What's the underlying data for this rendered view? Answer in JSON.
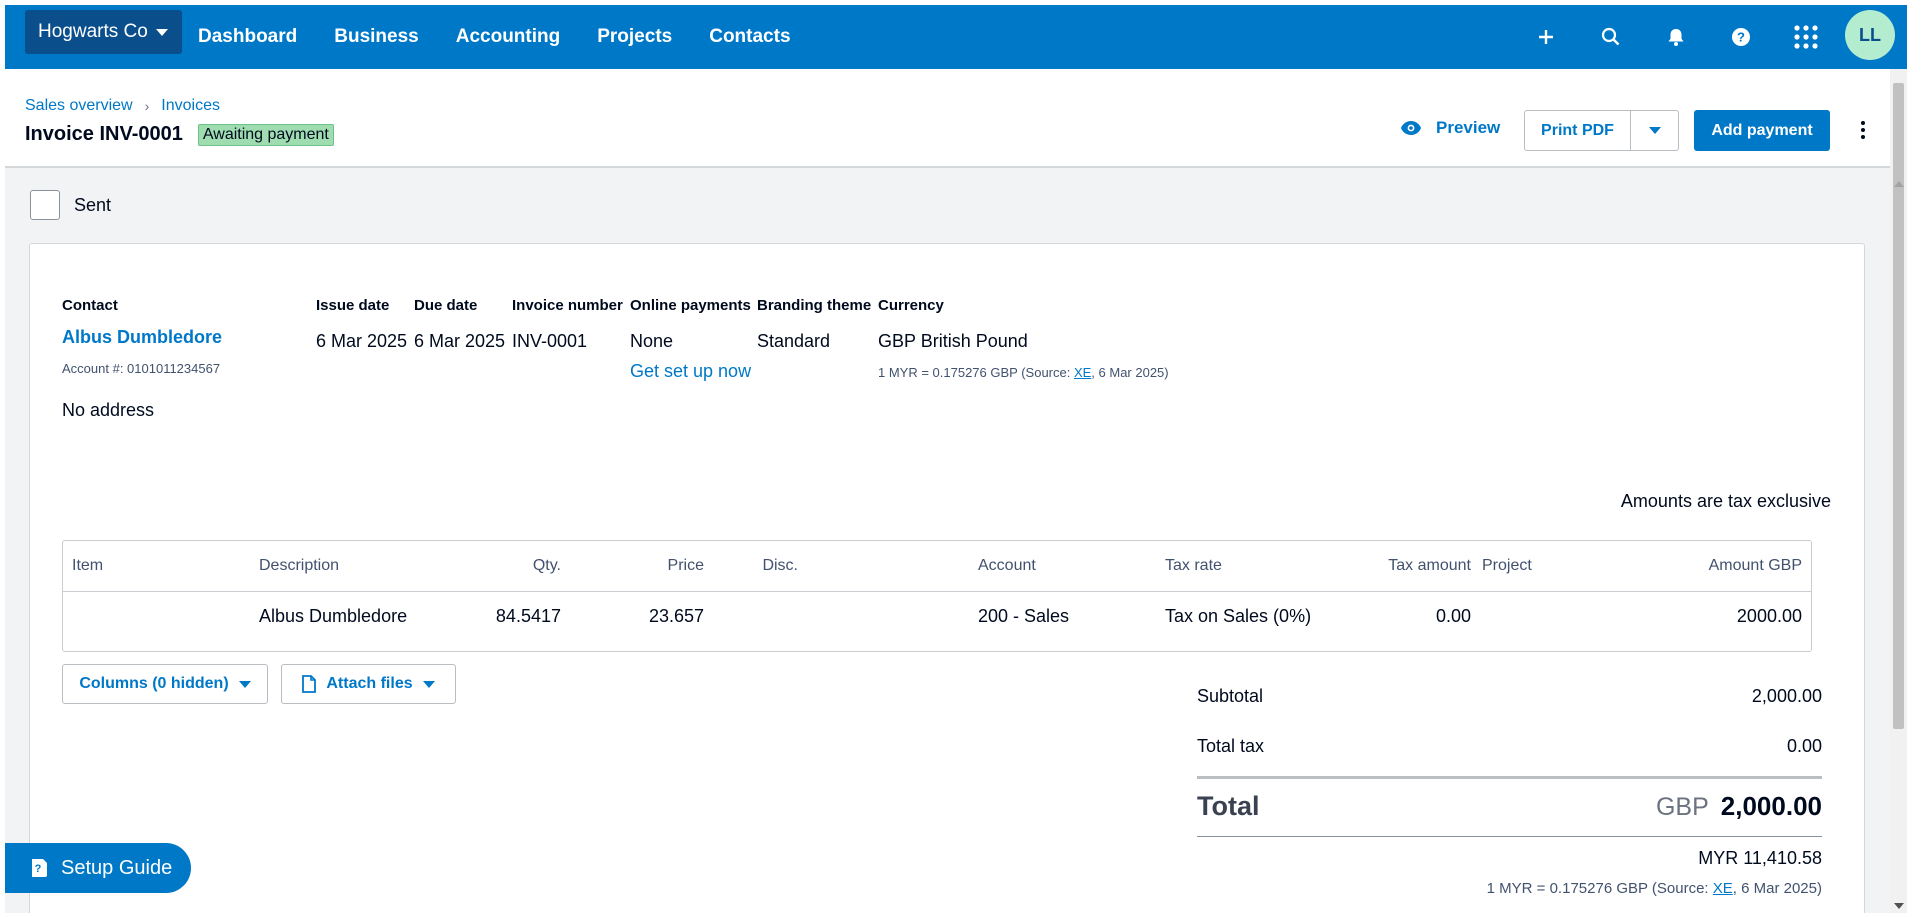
{
  "nav": {
    "org_name": "Hogwarts Co",
    "links": [
      "Dashboard",
      "Business",
      "Accounting",
      "Projects",
      "Contacts"
    ],
    "icons": [
      "plus-icon",
      "search-icon",
      "bell-icon",
      "help-icon",
      "apps-grid-icon"
    ],
    "avatar_initials": "LL",
    "colors": {
      "bar": "#0078c8",
      "org": "#0a4e8c",
      "avatar_bg": "#b4ecd0"
    }
  },
  "header": {
    "breadcrumb": [
      "Sales overview",
      "Invoices"
    ],
    "title": "Invoice INV-0001",
    "status": "Awaiting payment",
    "preview_label": "Preview",
    "print_pdf_label": "Print PDF",
    "add_payment_label": "Add payment"
  },
  "sent_label": "Sent",
  "invoice": {
    "contact": {
      "label": "Contact",
      "name": "Albus Dumbledore",
      "account": "Account #: 0101011234567",
      "address": "No address"
    },
    "issue_date": {
      "label": "Issue date",
      "value": "6 Mar 2025"
    },
    "due_date": {
      "label": "Due date",
      "value": "6 Mar 2025"
    },
    "invoice_number": {
      "label": "Invoice number",
      "value": "INV-0001"
    },
    "online_payments": {
      "label": "Online payments",
      "value": "None",
      "link": "Get set up now"
    },
    "branding_theme": {
      "label": "Branding theme",
      "value": "Standard"
    },
    "currency": {
      "label": "Currency",
      "value": "GBP British Pound",
      "rate_prefix": "1 MYR = 0.175276 GBP (Source: ",
      "rate_source": "XE",
      "rate_suffix": ", 6 Mar 2025)"
    },
    "tax_note": "Amounts are tax exclusive",
    "table": {
      "headers": [
        "Item",
        "Description",
        "Qty.",
        "Price",
        "Disc.",
        "Account",
        "Tax rate",
        "Tax amount",
        "Project",
        "Amount GBP"
      ],
      "rows": [
        {
          "item": "",
          "description": "Albus Dumbledore",
          "qty": "84.5417",
          "price": "23.657",
          "disc": "",
          "account": "200 - Sales",
          "tax_rate": "Tax on Sales (0%)",
          "tax_amount": "0.00",
          "project": "",
          "amount": "2000.00"
        }
      ]
    },
    "columns_button": "Columns (0 hidden)",
    "attach_button": "Attach files",
    "totals": {
      "subtotal_label": "Subtotal",
      "subtotal": "2,000.00",
      "total_tax_label": "Total tax",
      "total_tax": "0.00",
      "total_label": "Total",
      "total_currency": "GBP",
      "total": "2,000.00",
      "myr_total": "MYR 11,410.58",
      "rate_prefix": "1 MYR = 0.175276 GBP (Source: ",
      "rate_source": "XE",
      "rate_suffix": ", 6 Mar 2025)"
    }
  },
  "setup_guide_label": "Setup Guide",
  "colors": {
    "accent": "#0078c8",
    "status_badge": "#9fdcb0",
    "text": "#000a1e"
  }
}
